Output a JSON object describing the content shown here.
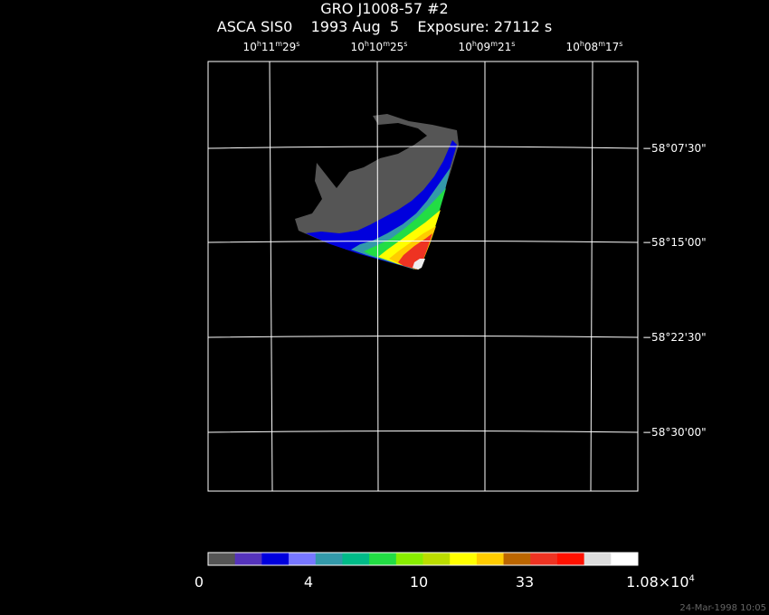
{
  "title": "GRO J1008-57 #2",
  "subtitle": "ASCA SIS0    1993 Aug  5    Exposure: 27112 s",
  "ra_ticks": [
    {
      "h": "10",
      "m": "11",
      "s": "29"
    },
    {
      "h": "10",
      "m": "10",
      "s": "25"
    },
    {
      "h": "10",
      "m": "09",
      "s": "21"
    },
    {
      "h": "10",
      "m": "08",
      "s": "17"
    }
  ],
  "dec_ticks": [
    "−58°07'30\"",
    "−58°15'00\"",
    "−58°22'30\"",
    "−58°30'00\""
  ],
  "colorbar": {
    "colors": [
      "#555555",
      "#5533bb",
      "#0000dd",
      "#7777ff",
      "#3399aa",
      "#00bb88",
      "#22dd44",
      "#88ee00",
      "#bbdd00",
      "#ffff00",
      "#ffcc00",
      "#bb6600",
      "#ee3322",
      "#ff1100",
      "#dddddd",
      "#ffffff"
    ],
    "labels": [
      {
        "text": "0"
      },
      {
        "text": "4"
      },
      {
        "text": "10"
      },
      {
        "text": "33"
      },
      {
        "text": "1.08×10",
        "sup": "4"
      }
    ]
  },
  "stamp": "24-Mar-1998 10:05"
}
